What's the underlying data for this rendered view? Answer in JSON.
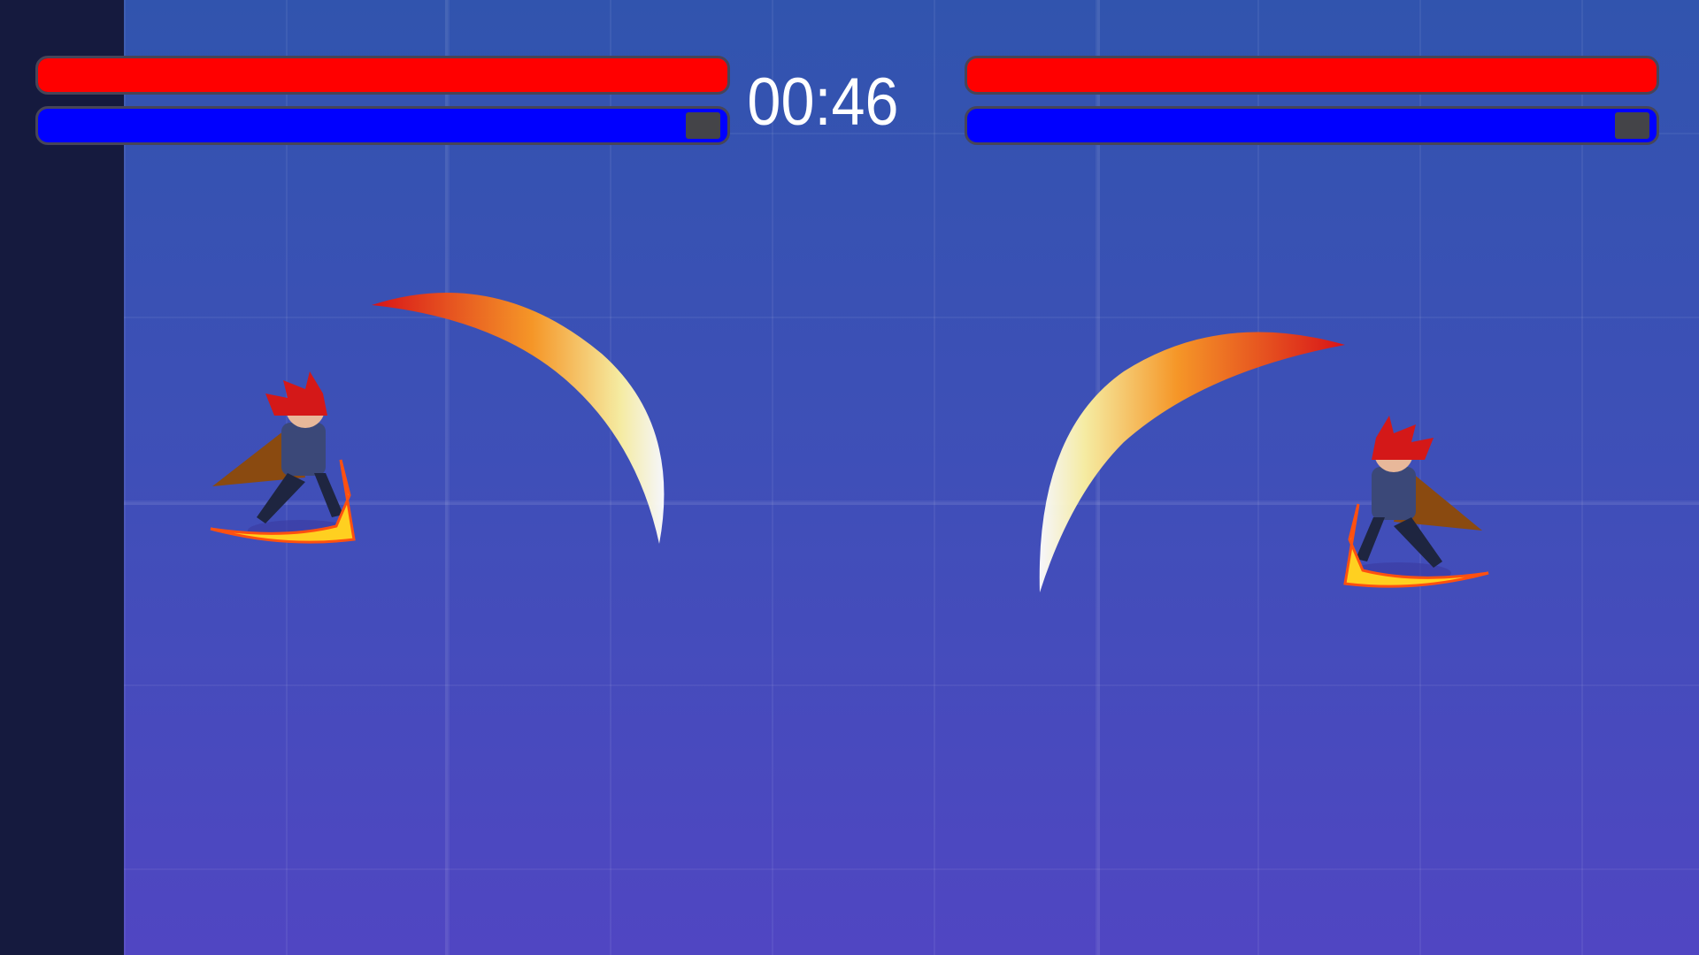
{
  "hud": {
    "timer": "00:46",
    "player1": {
      "health_fraction": 1.0,
      "mana_fraction": 0.95
    },
    "player2": {
      "health_fraction": 1.0,
      "mana_fraction": 0.95
    }
  },
  "colors": {
    "health": "#ff0000",
    "mana": "#0000ff",
    "bar_border": "#474558",
    "side_panel": "#151a3e",
    "background_top": "#3154ae",
    "background_bottom": "#5046c2"
  }
}
